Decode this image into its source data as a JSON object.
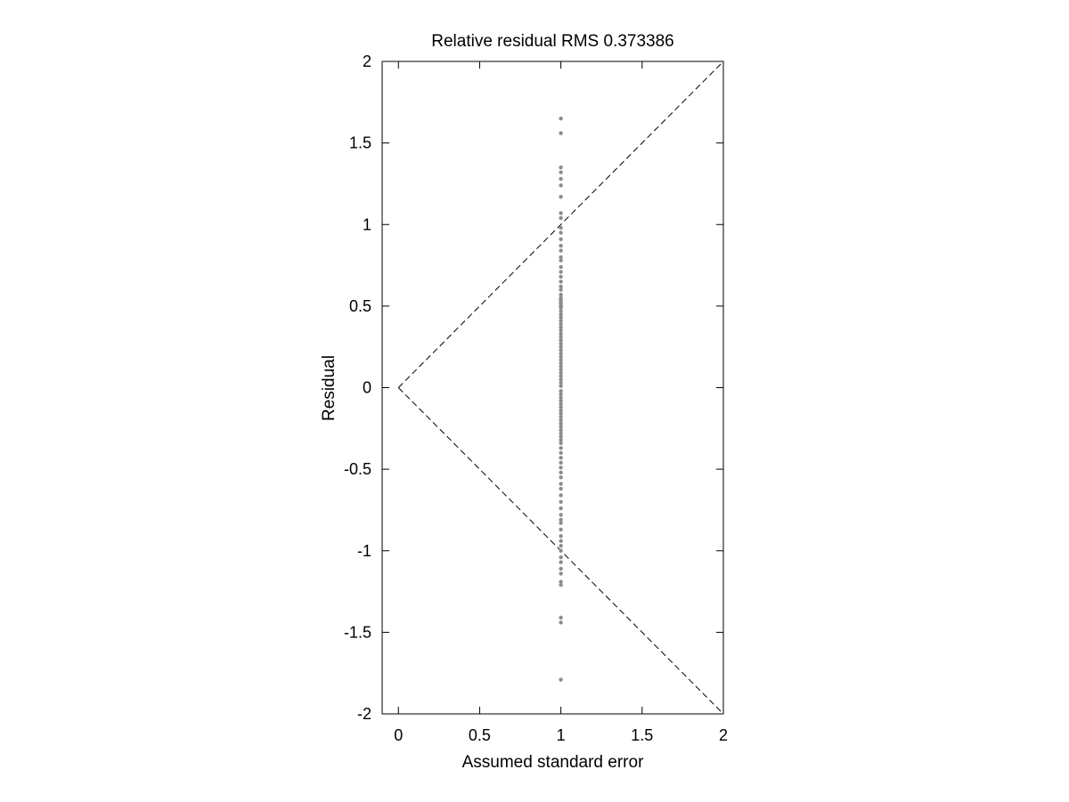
{
  "chart_data": {
    "type": "scatter",
    "title": "Relative residual RMS 0.373386",
    "xlabel": "Assumed standard error",
    "ylabel": "Residual",
    "xlim": [
      -0.1,
      2
    ],
    "ylim": [
      -2,
      2
    ],
    "xticks": [
      0,
      0.5,
      1,
      1.5,
      2
    ],
    "xtick_labels": [
      "0",
      "0.5",
      "1",
      "1.5",
      "2"
    ],
    "yticks": [
      -2,
      -1.5,
      -1,
      -0.5,
      0,
      0.5,
      1,
      1.5,
      2
    ],
    "ytick_labels": [
      "-2",
      "-1.5",
      "-1",
      "-0.5",
      "0",
      "0.5",
      "1",
      "1.5",
      "2"
    ],
    "grid": false,
    "reference_lines": [
      {
        "x": [
          0,
          2
        ],
        "y": [
          0,
          2
        ],
        "style": "dashed",
        "color": "#000000"
      },
      {
        "x": [
          0,
          2
        ],
        "y": [
          0,
          -2
        ],
        "style": "dashed",
        "color": "#000000"
      }
    ],
    "series": [
      {
        "color": "#8c8c8c",
        "marker": "dot",
        "x": [
          1,
          1,
          1,
          1,
          1,
          1,
          1,
          1,
          1,
          1,
          1,
          1,
          1,
          1,
          1,
          1,
          1,
          1,
          1,
          1,
          1,
          1,
          1,
          1,
          1,
          1,
          1,
          1,
          1,
          1,
          1,
          1,
          1,
          1,
          1,
          1,
          1,
          1,
          1,
          1,
          1,
          1,
          1,
          1,
          1,
          1,
          1,
          1,
          1,
          1,
          1,
          1,
          1,
          1,
          1,
          1,
          1,
          1,
          1,
          1,
          1,
          1,
          1,
          1,
          1,
          1,
          1,
          1,
          1,
          1,
          1,
          1,
          1,
          1,
          1,
          1,
          1,
          1,
          1,
          1,
          1,
          1,
          1,
          1,
          1,
          1,
          1,
          1,
          1,
          1,
          1,
          1,
          1,
          1,
          1,
          1,
          1,
          1,
          1,
          1
        ],
        "y": [
          1.65,
          1.56,
          1.35,
          1.32,
          1.28,
          1.24,
          1.17,
          1.07,
          1.04,
          0.98,
          0.95,
          0.91,
          0.87,
          0.84,
          0.8,
          0.78,
          0.74,
          0.71,
          0.68,
          0.65,
          0.62,
          0.6,
          0.57,
          0.55,
          0.53,
          0.51,
          0.49,
          0.47,
          0.45,
          0.43,
          0.41,
          0.39,
          0.37,
          0.35,
          0.33,
          0.31,
          0.29,
          0.27,
          0.25,
          0.23,
          0.21,
          0.19,
          0.17,
          0.15,
          0.13,
          0.11,
          0.09,
          0.07,
          0.05,
          0.03,
          0.01,
          -0.02,
          -0.04,
          -0.06,
          -0.08,
          -0.1,
          -0.12,
          -0.14,
          -0.16,
          -0.18,
          -0.2,
          -0.22,
          -0.24,
          -0.26,
          -0.28,
          -0.3,
          -0.32,
          -0.34,
          -0.37,
          -0.4,
          -0.43,
          -0.46,
          -0.49,
          -0.52,
          -0.55,
          -0.59,
          -0.62,
          -0.66,
          -0.7,
          -0.74,
          -0.78,
          -0.81,
          -0.83,
          -0.87,
          -0.91,
          -0.94,
          -0.97,
          -1.0,
          -1.04,
          -1.07,
          -1.11,
          -1.14,
          -1.19,
          -1.21,
          -1.41,
          -1.44,
          -1.79,
          0.54,
          0.52,
          0.5
        ]
      }
    ]
  }
}
